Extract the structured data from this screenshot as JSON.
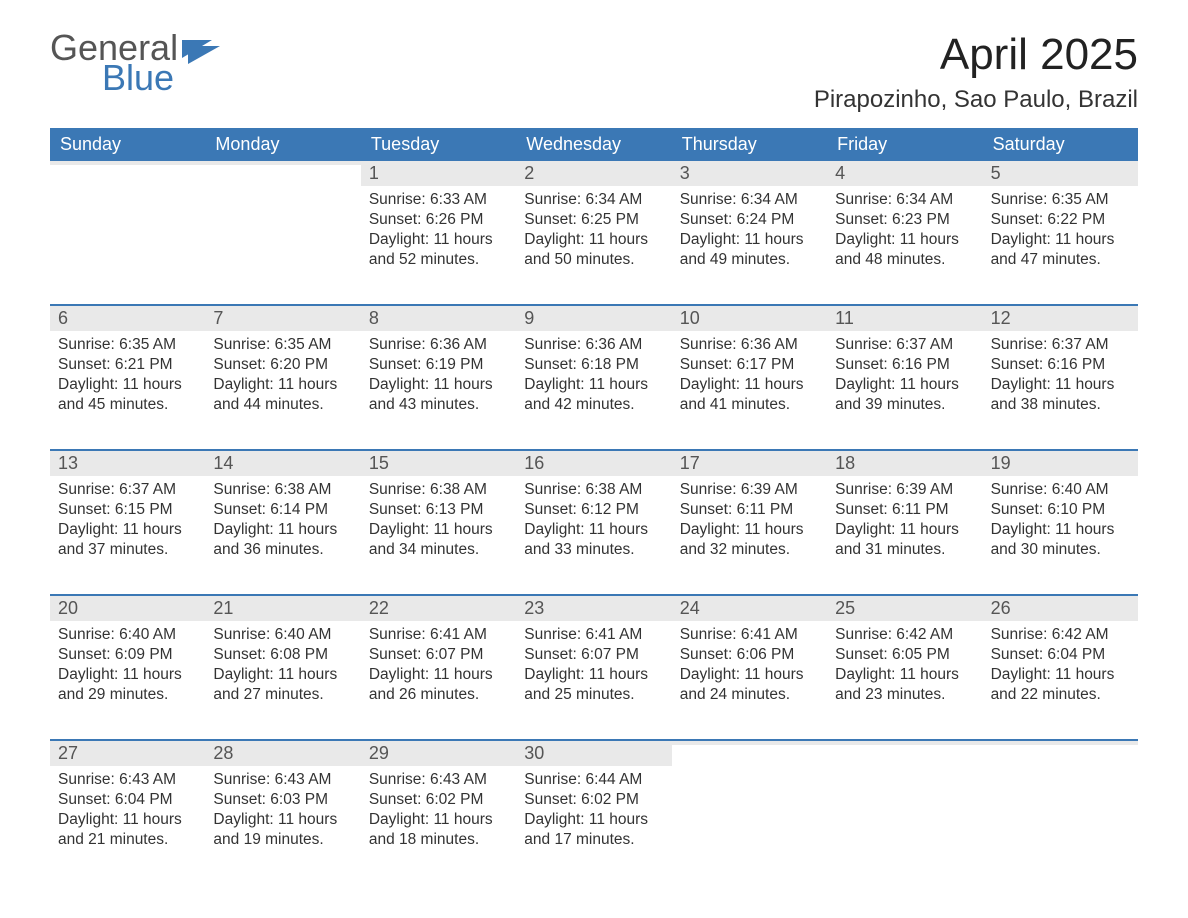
{
  "logo": {
    "general": "General",
    "blue": "Blue",
    "shape_color": "#3b78b5"
  },
  "title": "April 2025",
  "location": "Pirapozinho, Sao Paulo, Brazil",
  "colors": {
    "header_bg": "#3b78b5",
    "daterow_bg": "#e9e9e9",
    "week_border": "#3b78b5",
    "text": "#333333"
  },
  "daynames": [
    "Sunday",
    "Monday",
    "Tuesday",
    "Wednesday",
    "Thursday",
    "Friday",
    "Saturday"
  ],
  "weeks": [
    [
      {
        "date": "",
        "sunrise": "",
        "sunset": "",
        "daylight": ""
      },
      {
        "date": "",
        "sunrise": "",
        "sunset": "",
        "daylight": ""
      },
      {
        "date": "1",
        "sunrise": "Sunrise: 6:33 AM",
        "sunset": "Sunset: 6:26 PM",
        "daylight": "Daylight: 11 hours and 52 minutes."
      },
      {
        "date": "2",
        "sunrise": "Sunrise: 6:34 AM",
        "sunset": "Sunset: 6:25 PM",
        "daylight": "Daylight: 11 hours and 50 minutes."
      },
      {
        "date": "3",
        "sunrise": "Sunrise: 6:34 AM",
        "sunset": "Sunset: 6:24 PM",
        "daylight": "Daylight: 11 hours and 49 minutes."
      },
      {
        "date": "4",
        "sunrise": "Sunrise: 6:34 AM",
        "sunset": "Sunset: 6:23 PM",
        "daylight": "Daylight: 11 hours and 48 minutes."
      },
      {
        "date": "5",
        "sunrise": "Sunrise: 6:35 AM",
        "sunset": "Sunset: 6:22 PM",
        "daylight": "Daylight: 11 hours and 47 minutes."
      }
    ],
    [
      {
        "date": "6",
        "sunrise": "Sunrise: 6:35 AM",
        "sunset": "Sunset: 6:21 PM",
        "daylight": "Daylight: 11 hours and 45 minutes."
      },
      {
        "date": "7",
        "sunrise": "Sunrise: 6:35 AM",
        "sunset": "Sunset: 6:20 PM",
        "daylight": "Daylight: 11 hours and 44 minutes."
      },
      {
        "date": "8",
        "sunrise": "Sunrise: 6:36 AM",
        "sunset": "Sunset: 6:19 PM",
        "daylight": "Daylight: 11 hours and 43 minutes."
      },
      {
        "date": "9",
        "sunrise": "Sunrise: 6:36 AM",
        "sunset": "Sunset: 6:18 PM",
        "daylight": "Daylight: 11 hours and 42 minutes."
      },
      {
        "date": "10",
        "sunrise": "Sunrise: 6:36 AM",
        "sunset": "Sunset: 6:17 PM",
        "daylight": "Daylight: 11 hours and 41 minutes."
      },
      {
        "date": "11",
        "sunrise": "Sunrise: 6:37 AM",
        "sunset": "Sunset: 6:16 PM",
        "daylight": "Daylight: 11 hours and 39 minutes."
      },
      {
        "date": "12",
        "sunrise": "Sunrise: 6:37 AM",
        "sunset": "Sunset: 6:16 PM",
        "daylight": "Daylight: 11 hours and 38 minutes."
      }
    ],
    [
      {
        "date": "13",
        "sunrise": "Sunrise: 6:37 AM",
        "sunset": "Sunset: 6:15 PM",
        "daylight": "Daylight: 11 hours and 37 minutes."
      },
      {
        "date": "14",
        "sunrise": "Sunrise: 6:38 AM",
        "sunset": "Sunset: 6:14 PM",
        "daylight": "Daylight: 11 hours and 36 minutes."
      },
      {
        "date": "15",
        "sunrise": "Sunrise: 6:38 AM",
        "sunset": "Sunset: 6:13 PM",
        "daylight": "Daylight: 11 hours and 34 minutes."
      },
      {
        "date": "16",
        "sunrise": "Sunrise: 6:38 AM",
        "sunset": "Sunset: 6:12 PM",
        "daylight": "Daylight: 11 hours and 33 minutes."
      },
      {
        "date": "17",
        "sunrise": "Sunrise: 6:39 AM",
        "sunset": "Sunset: 6:11 PM",
        "daylight": "Daylight: 11 hours and 32 minutes."
      },
      {
        "date": "18",
        "sunrise": "Sunrise: 6:39 AM",
        "sunset": "Sunset: 6:11 PM",
        "daylight": "Daylight: 11 hours and 31 minutes."
      },
      {
        "date": "19",
        "sunrise": "Sunrise: 6:40 AM",
        "sunset": "Sunset: 6:10 PM",
        "daylight": "Daylight: 11 hours and 30 minutes."
      }
    ],
    [
      {
        "date": "20",
        "sunrise": "Sunrise: 6:40 AM",
        "sunset": "Sunset: 6:09 PM",
        "daylight": "Daylight: 11 hours and 29 minutes."
      },
      {
        "date": "21",
        "sunrise": "Sunrise: 6:40 AM",
        "sunset": "Sunset: 6:08 PM",
        "daylight": "Daylight: 11 hours and 27 minutes."
      },
      {
        "date": "22",
        "sunrise": "Sunrise: 6:41 AM",
        "sunset": "Sunset: 6:07 PM",
        "daylight": "Daylight: 11 hours and 26 minutes."
      },
      {
        "date": "23",
        "sunrise": "Sunrise: 6:41 AM",
        "sunset": "Sunset: 6:07 PM",
        "daylight": "Daylight: 11 hours and 25 minutes."
      },
      {
        "date": "24",
        "sunrise": "Sunrise: 6:41 AM",
        "sunset": "Sunset: 6:06 PM",
        "daylight": "Daylight: 11 hours and 24 minutes."
      },
      {
        "date": "25",
        "sunrise": "Sunrise: 6:42 AM",
        "sunset": "Sunset: 6:05 PM",
        "daylight": "Daylight: 11 hours and 23 minutes."
      },
      {
        "date": "26",
        "sunrise": "Sunrise: 6:42 AM",
        "sunset": "Sunset: 6:04 PM",
        "daylight": "Daylight: 11 hours and 22 minutes."
      }
    ],
    [
      {
        "date": "27",
        "sunrise": "Sunrise: 6:43 AM",
        "sunset": "Sunset: 6:04 PM",
        "daylight": "Daylight: 11 hours and 21 minutes."
      },
      {
        "date": "28",
        "sunrise": "Sunrise: 6:43 AM",
        "sunset": "Sunset: 6:03 PM",
        "daylight": "Daylight: 11 hours and 19 minutes."
      },
      {
        "date": "29",
        "sunrise": "Sunrise: 6:43 AM",
        "sunset": "Sunset: 6:02 PM",
        "daylight": "Daylight: 11 hours and 18 minutes."
      },
      {
        "date": "30",
        "sunrise": "Sunrise: 6:44 AM",
        "sunset": "Sunset: 6:02 PM",
        "daylight": "Daylight: 11 hours and 17 minutes."
      },
      {
        "date": "",
        "sunrise": "",
        "sunset": "",
        "daylight": ""
      },
      {
        "date": "",
        "sunrise": "",
        "sunset": "",
        "daylight": ""
      },
      {
        "date": "",
        "sunrise": "",
        "sunset": "",
        "daylight": ""
      }
    ]
  ]
}
